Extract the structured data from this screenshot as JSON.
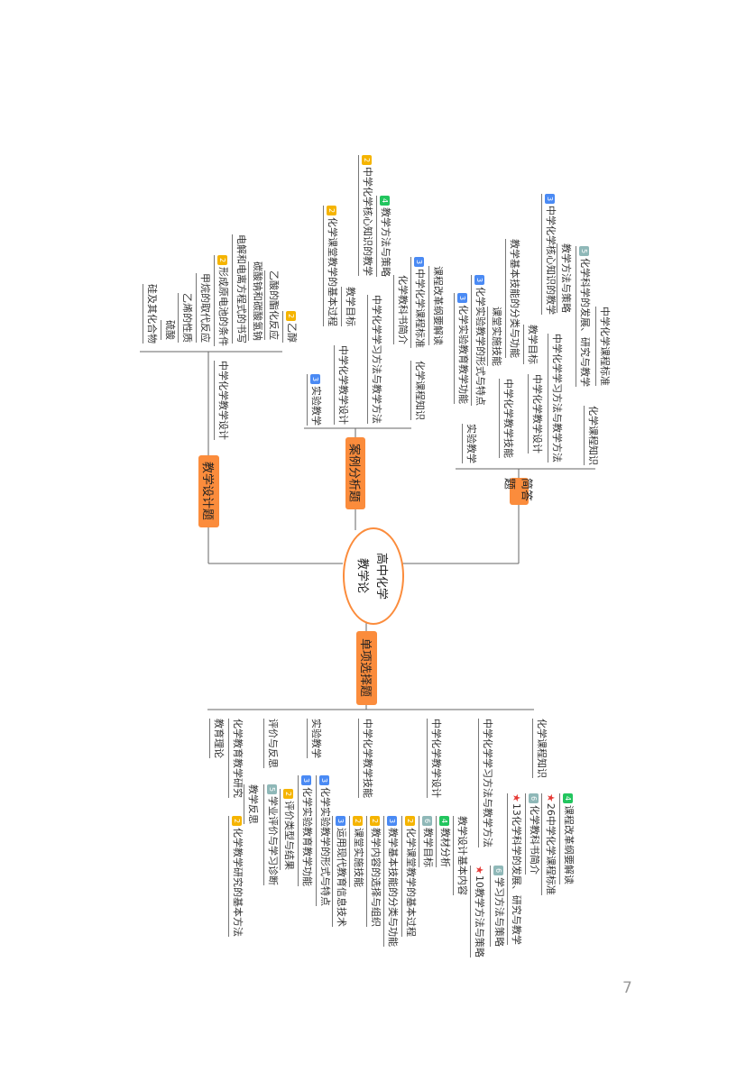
{
  "colors": {
    "accent": "#fb8c3c",
    "yellow": "#f5b400",
    "blue": "#4a8af4",
    "green": "#22c55e",
    "teal": "#8fb8b8",
    "star": "#e53935"
  },
  "center": {
    "line1": "高中化学",
    "line2": "教学论"
  },
  "branches": [
    "简答题",
    "案例分析题",
    "教学设计题",
    "单项选择题"
  ],
  "labels": [
    {
      "text": "中学化学核心知识的教学",
      "badge": "2",
      "color": "yellow"
    },
    {
      "text": "教学方法与策略",
      "badge": "4",
      "color": "green"
    },
    {
      "text": "化学课堂教学的基本过程",
      "badge": "2",
      "color": "yellow"
    },
    {
      "text": "教学目标"
    },
    {
      "text": "中学化学教学设计"
    },
    {
      "text": "中学化学学习方法与教学方法"
    },
    {
      "text": "中学化学课程标准",
      "badge": "3",
      "color": "blue"
    },
    {
      "text": "课程改革纲要解读"
    },
    {
      "text": "化学教科书简介"
    },
    {
      "text": "化学课程知识"
    },
    {
      "text": "实验教学",
      "badge": "3",
      "color": "blue"
    },
    {
      "text": "化学实验教学的形式与特点",
      "badge": "3",
      "color": "blue"
    },
    {
      "text": "化学实验教育教学功能",
      "badge": "3",
      "color": "blue"
    },
    {
      "text": "实验教学"
    },
    {
      "text": "课堂实施技能"
    },
    {
      "text": "教学基本技能的分类与功能"
    },
    {
      "text": "中学化学教学技能"
    },
    {
      "text": "教学目标"
    },
    {
      "text": "中学化学教学设计"
    },
    {
      "text": "中学化学核心知识的教学",
      "badge": "3",
      "color": "blue"
    },
    {
      "text": "教学方法与策略"
    },
    {
      "text": "中学化学学习方法与教学方法"
    },
    {
      "text": "化学科学的发展、研究与教学",
      "badge": "5",
      "color": "teal"
    },
    {
      "text": "中学化学课程标准"
    },
    {
      "text": "化学课程知识"
    },
    {
      "text": "乙醇",
      "badge": "2",
      "color": "yellow"
    },
    {
      "text": "乙酸的酯化反应"
    },
    {
      "text": "碳酸钠和碳酸氢钠"
    },
    {
      "text": "电解和电离方程式的书写"
    },
    {
      "text": "形成原电池的条件",
      "badge": "2",
      "color": "yellow"
    },
    {
      "text": "甲烷的取代反应"
    },
    {
      "text": "乙烯的性质"
    },
    {
      "text": "硫酸"
    },
    {
      "text": "硅及其化合物"
    },
    {
      "text": "中学化学教学设计"
    },
    {
      "text": "教育理论"
    },
    {
      "text": "化学教育教学研究"
    },
    {
      "text": "评价与反思"
    },
    {
      "text": "实验教学"
    },
    {
      "text": "中学化学教学技能"
    },
    {
      "text": "中学化学教学设计"
    },
    {
      "text": "中学化学学习方法与教学方法"
    },
    {
      "text": "化学课程知识"
    },
    {
      "text": "教学反思"
    },
    {
      "text": "化学教学研究的基本方法",
      "badge": "2",
      "color": "yellow"
    },
    {
      "text": "学业评价与学习诊断",
      "badge": "5",
      "color": "teal"
    },
    {
      "text": "评价类型与结果",
      "badge": "2",
      "color": "yellow"
    },
    {
      "text": "化学实验教育教学功能",
      "badge": "3",
      "color": "blue"
    },
    {
      "text": "化学实验教学的形式与特点",
      "badge": "3",
      "color": "blue"
    },
    {
      "text": "运用现代教育信息技术",
      "badge": "3",
      "color": "blue"
    },
    {
      "text": "课堂实施技能",
      "badge": "2",
      "color": "yellow"
    },
    {
      "text": "教学内容的选择与组织",
      "badge": "2",
      "color": "yellow"
    },
    {
      "text": "教学基本技能的分类与功能",
      "badge": "3",
      "color": "blue"
    },
    {
      "text": "化学课堂教学的基本过程",
      "badge": "2",
      "color": "yellow"
    },
    {
      "text": "教学目标",
      "badge": "6",
      "color": "teal"
    },
    {
      "text": "教材分析",
      "badge": "4",
      "color": "green"
    },
    {
      "text": "教学设计基本内容"
    },
    {
      "text": "学习方法与策略",
      "badge": "6",
      "color": "teal"
    },
    {
      "text": "10教学方法与策略",
      "star": true
    },
    {
      "text": "13化学科学的发展、研究与教学",
      "star": true
    },
    {
      "text": "化学教科书简介",
      "badge": "6",
      "color": "teal"
    },
    {
      "text": "26中学化学课程标准",
      "star": true
    },
    {
      "text": "课程改革纲要解读",
      "badge": "4",
      "color": "green"
    }
  ],
  "page_number": "7"
}
